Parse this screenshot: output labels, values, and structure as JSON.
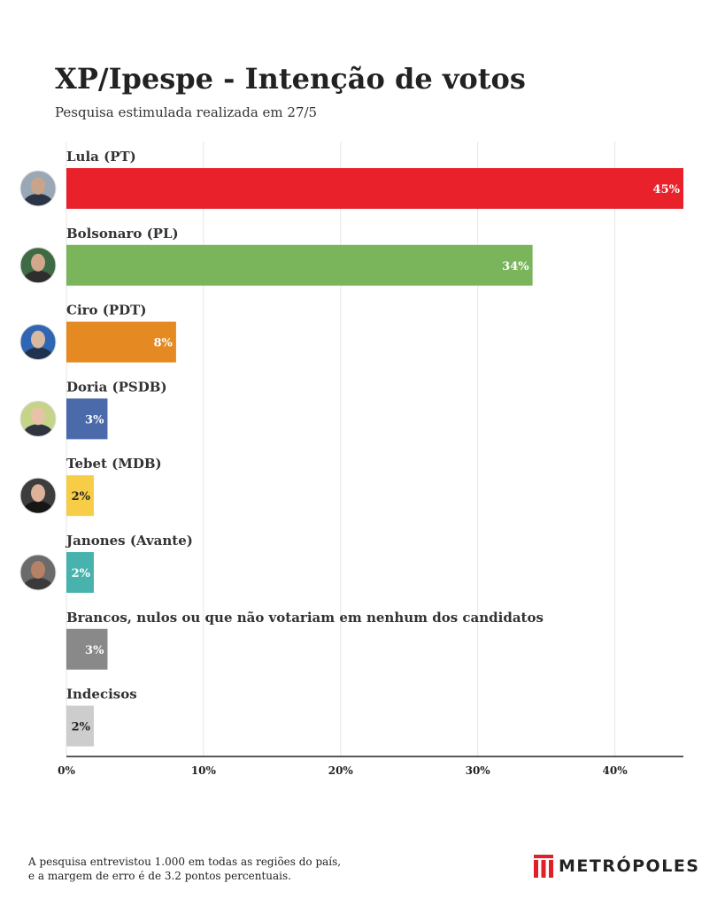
{
  "header": {
    "title": "XP/Ipespe - Intenção de votos",
    "subtitle": "Pesquisa estimulada realizada em 27/5"
  },
  "footnote": {
    "line1": "A pesquisa entrevistou 1.000 em todas as regiões do país,",
    "line2": "e a margem de erro é de 3.2 pontos percentuais."
  },
  "logo": {
    "text": "METRÓPOLES",
    "color": "#e11f26"
  },
  "chart_data": {
    "type": "bar",
    "orientation": "horizontal",
    "title": "XP/Ipespe - Intenção de votos",
    "subtitle": "Pesquisa estimulada realizada em 27/5",
    "categories": [
      "Lula (PT)",
      "Bolsonaro (PL)",
      "Ciro (PDT)",
      "Doria (PSDB)",
      "Tebet (MDB)",
      "Janones (Avante)",
      "Brancos, nulos ou que não votariam em nenhum dos candidatos",
      "Indecisos"
    ],
    "values": [
      45,
      34,
      8,
      3,
      2,
      2,
      3,
      2
    ],
    "value_labels": [
      "45%",
      "34%",
      "8%",
      "3%",
      "2%",
      "2%",
      "3%",
      "2%"
    ],
    "colors": [
      "#e8212b",
      "#7ab55c",
      "#e58a22",
      "#4a6aaa",
      "#f7cd48",
      "#48b2ad",
      "#898989",
      "#cdcdcd"
    ],
    "label_colors": [
      "#ffffff",
      "#ffffff",
      "#ffffff",
      "#ffffff",
      "#222222",
      "#ffffff",
      "#ffffff",
      "#222222"
    ],
    "avatars": [
      {
        "name": "lula-avatar",
        "bg": "#9aa7b5",
        "face": "#c9a38a",
        "shirt": "#2a3547"
      },
      {
        "name": "bolsonaro-avatar",
        "bg": "#3f6b44",
        "face": "#d2a88c",
        "shirt": "#2e2e2e"
      },
      {
        "name": "ciro-avatar",
        "bg": "#2f66b3",
        "face": "#d9b8a0",
        "shirt": "#20324f"
      },
      {
        "name": "doria-avatar",
        "bg": "#c6d48a",
        "face": "#e7c2a6",
        "shirt": "#2f3440"
      },
      {
        "name": "tebet-avatar",
        "bg": "#3d3d3d",
        "face": "#dcb39a",
        "shirt": "#161616"
      },
      {
        "name": "janones-avatar",
        "bg": "#6b6b6b",
        "face": "#b58266",
        "shirt": "#3a3a3a"
      }
    ],
    "xlim": [
      0,
      45
    ],
    "xticks": [
      0,
      10,
      20,
      30,
      40
    ],
    "xtick_labels": [
      "0%",
      "10%",
      "20%",
      "30%",
      "40%"
    ],
    "grid": true
  }
}
